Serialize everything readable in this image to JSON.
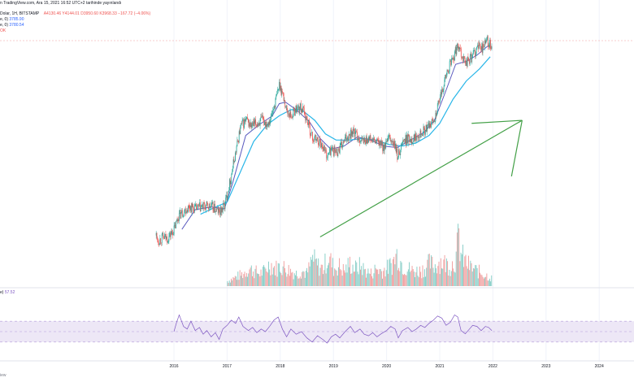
{
  "header": {
    "published": "n TradingView.com, Ara 15, 2021 16:52 UTC+2 tarihinde yayınlandı",
    "symbol": "Dolar, 1H, BITSTAMP",
    "ohlc": [
      "A4130.46",
      "Y4144.01",
      "D3950.60",
      "K3968.33",
      "−167.72 (−4.06%)"
    ],
    "ma1": "e, 0)",
    "ma1_value": "3785.90",
    "ma2": "e, 0)",
    "ma2_value": "3780.54",
    "vol": "OK",
    "rsi": "e)",
    "rsi_value": "57.52"
  },
  "footer": {
    "text": "iew"
  },
  "colors": {
    "up": "#26a69a",
    "down": "#ef5350",
    "ma_fast": "#5b5bbf",
    "ma_slow": "#29b6e8",
    "arrow": "#43a047",
    "rsi": "#7e57c2",
    "rsi_band": "#ede7f6"
  },
  "chart_data": {
    "type": "line",
    "x_ticks": [
      "2016",
      "2017",
      "2018",
      "2019",
      "2020",
      "2021",
      "2022",
      "2023",
      "2024"
    ],
    "price_path": [
      [
        2015.66,
        0.6
      ],
      [
        2015.7,
        0.43
      ],
      [
        2015.78,
        0.52
      ],
      [
        2015.88,
        0.51
      ],
      [
        2016.0,
        0.8
      ],
      [
        2016.08,
        1.25
      ],
      [
        2016.18,
        1.4
      ],
      [
        2016.28,
        1.55
      ],
      [
        2016.4,
        1.48
      ],
      [
        2016.55,
        1.55
      ],
      [
        2016.7,
        1.55
      ],
      [
        2016.85,
        1.35
      ],
      [
        2016.95,
        1.6
      ],
      [
        2017.05,
        2.4
      ],
      [
        2017.15,
        3.3
      ],
      [
        2017.25,
        4.2
      ],
      [
        2017.35,
        4.4
      ],
      [
        2017.45,
        4.2
      ],
      [
        2017.55,
        4.3
      ],
      [
        2017.65,
        4.4
      ],
      [
        2017.75,
        4.3
      ],
      [
        2017.83,
        4.55
      ],
      [
        2017.9,
        5.0
      ],
      [
        2017.98,
        5.6
      ],
      [
        2018.05,
        5.2
      ],
      [
        2018.12,
        4.7
      ],
      [
        2018.2,
        4.55
      ],
      [
        2018.3,
        4.8
      ],
      [
        2018.4,
        4.8
      ],
      [
        2018.5,
        4.4
      ],
      [
        2018.6,
        3.8
      ],
      [
        2018.7,
        3.75
      ],
      [
        2018.8,
        3.55
      ],
      [
        2018.88,
        3.2
      ],
      [
        2018.95,
        3.45
      ],
      [
        2019.05,
        3.35
      ],
      [
        2019.15,
        3.55
      ],
      [
        2019.25,
        3.85
      ],
      [
        2019.35,
        4.05
      ],
      [
        2019.45,
        3.85
      ],
      [
        2019.55,
        3.7
      ],
      [
        2019.65,
        3.8
      ],
      [
        2019.75,
        3.7
      ],
      [
        2019.85,
        3.65
      ],
      [
        2019.95,
        3.5
      ],
      [
        2020.05,
        3.8
      ],
      [
        2020.15,
        3.55
      ],
      [
        2020.2,
        3.2
      ],
      [
        2020.3,
        3.7
      ],
      [
        2020.4,
        3.8
      ],
      [
        2020.5,
        3.8
      ],
      [
        2020.6,
        4.0
      ],
      [
        2020.7,
        4.05
      ],
      [
        2020.8,
        4.2
      ],
      [
        2020.9,
        4.5
      ],
      [
        2021.0,
        5.1
      ],
      [
        2021.08,
        5.7
      ],
      [
        2021.18,
        6.2
      ],
      [
        2021.28,
        6.6
      ],
      [
        2021.35,
        6.95
      ],
      [
        2021.4,
        6.6
      ],
      [
        2021.48,
        6.3
      ],
      [
        2021.55,
        6.4
      ],
      [
        2021.62,
        6.55
      ],
      [
        2021.7,
        6.8
      ],
      [
        2021.8,
        6.8
      ],
      [
        2021.88,
        7.05
      ],
      [
        2021.93,
        6.9
      ],
      [
        2021.98,
        6.75
      ]
    ],
    "ma_fast": [
      [
        2016.15,
        0.8
      ],
      [
        2016.4,
        1.45
      ],
      [
        2016.7,
        1.54
      ],
      [
        2016.95,
        1.48
      ],
      [
        2017.1,
        2.3
      ],
      [
        2017.35,
        3.9
      ],
      [
        2017.6,
        4.25
      ],
      [
        2017.85,
        4.55
      ],
      [
        2017.98,
        4.95
      ],
      [
        2018.1,
        5.0
      ],
      [
        2018.3,
        4.75
      ],
      [
        2018.55,
        4.35
      ],
      [
        2018.75,
        3.8
      ],
      [
        2018.95,
        3.45
      ],
      [
        2019.2,
        3.55
      ],
      [
        2019.45,
        3.85
      ],
      [
        2019.7,
        3.75
      ],
      [
        2019.95,
        3.55
      ],
      [
        2020.2,
        3.5
      ],
      [
        2020.45,
        3.75
      ],
      [
        2020.7,
        4.0
      ],
      [
        2020.9,
        4.4
      ],
      [
        2021.1,
        5.3
      ],
      [
        2021.3,
        6.25
      ],
      [
        2021.5,
        6.35
      ],
      [
        2021.7,
        6.55
      ],
      [
        2021.9,
        6.85
      ]
    ],
    "ma_slow": [
      [
        2016.5,
        1.3
      ],
      [
        2016.8,
        1.55
      ],
      [
        2017.0,
        1.7
      ],
      [
        2017.25,
        2.7
      ],
      [
        2017.5,
        3.7
      ],
      [
        2017.75,
        4.25
      ],
      [
        2017.98,
        4.55
      ],
      [
        2018.2,
        4.75
      ],
      [
        2018.4,
        4.75
      ],
      [
        2018.65,
        4.4
      ],
      [
        2018.85,
        3.95
      ],
      [
        2019.05,
        3.75
      ],
      [
        2019.3,
        3.75
      ],
      [
        2019.55,
        3.8
      ],
      [
        2019.8,
        3.75
      ],
      [
        2020.05,
        3.6
      ],
      [
        2020.3,
        3.55
      ],
      [
        2020.55,
        3.65
      ],
      [
        2020.8,
        3.9
      ],
      [
        2021.0,
        4.3
      ],
      [
        2021.25,
        5.1
      ],
      [
        2021.5,
        5.7
      ],
      [
        2021.75,
        6.1
      ],
      [
        2021.95,
        6.5
      ]
    ],
    "arrow": {
      "from": [
        2018.75,
        0.55
      ],
      "to": [
        2022.55,
        4.4
      ],
      "extension_to": [
        2022.35,
        2.55
      ],
      "extension_from": [
        2021.6,
        4.3
      ]
    },
    "volume": [
      [
        2017.0,
        0.1
      ],
      [
        2017.1,
        0.15
      ],
      [
        2017.2,
        0.2
      ],
      [
        2017.3,
        0.25
      ],
      [
        2017.4,
        0.35
      ],
      [
        2017.5,
        0.3
      ],
      [
        2017.6,
        0.25
      ],
      [
        2017.7,
        0.3
      ],
      [
        2017.8,
        0.45
      ],
      [
        2017.9,
        0.35
      ],
      [
        2018.0,
        0.4
      ],
      [
        2018.1,
        0.35
      ],
      [
        2018.2,
        0.3
      ],
      [
        2018.3,
        0.25
      ],
      [
        2018.4,
        0.3
      ],
      [
        2018.5,
        0.25
      ],
      [
        2018.6,
        0.55
      ],
      [
        2018.7,
        0.4
      ],
      [
        2018.8,
        0.35
      ],
      [
        2018.9,
        0.6
      ],
      [
        2019.0,
        0.35
      ],
      [
        2019.1,
        0.4
      ],
      [
        2019.2,
        0.3
      ],
      [
        2019.3,
        0.45
      ],
      [
        2019.4,
        0.35
      ],
      [
        2019.5,
        0.4
      ],
      [
        2019.6,
        0.3
      ],
      [
        2019.7,
        0.25
      ],
      [
        2019.8,
        0.35
      ],
      [
        2019.9,
        0.3
      ],
      [
        2020.0,
        0.35
      ],
      [
        2020.1,
        0.45
      ],
      [
        2020.2,
        0.65
      ],
      [
        2020.3,
        0.4
      ],
      [
        2020.4,
        0.35
      ],
      [
        2020.5,
        0.3
      ],
      [
        2020.6,
        0.3
      ],
      [
        2020.7,
        0.35
      ],
      [
        2020.8,
        0.45
      ],
      [
        2020.9,
        0.4
      ],
      [
        2021.0,
        0.5
      ],
      [
        2021.1,
        0.45
      ],
      [
        2021.2,
        0.4
      ],
      [
        2021.3,
        0.55
      ],
      [
        2021.35,
        1.0
      ],
      [
        2021.4,
        0.6
      ],
      [
        2021.5,
        0.45
      ],
      [
        2021.6,
        0.35
      ],
      [
        2021.7,
        0.3
      ],
      [
        2021.8,
        0.25
      ],
      [
        2021.9,
        0.2
      ],
      [
        2021.98,
        0.15
      ]
    ],
    "rsi": [
      [
        2016.0,
        50
      ],
      [
        2016.05,
        68
      ],
      [
        2016.1,
        82
      ],
      [
        2016.18,
        60
      ],
      [
        2016.25,
        55
      ],
      [
        2016.32,
        70
      ],
      [
        2016.4,
        52
      ],
      [
        2016.48,
        58
      ],
      [
        2016.55,
        45
      ],
      [
        2016.62,
        52
      ],
      [
        2016.7,
        40
      ],
      [
        2016.78,
        48
      ],
      [
        2016.85,
        35
      ],
      [
        2016.92,
        55
      ],
      [
        2017.0,
        62
      ],
      [
        2017.08,
        72
      ],
      [
        2017.16,
        66
      ],
      [
        2017.22,
        78
      ],
      [
        2017.3,
        60
      ],
      [
        2017.4,
        52
      ],
      [
        2017.48,
        58
      ],
      [
        2017.56,
        48
      ],
      [
        2017.64,
        55
      ],
      [
        2017.72,
        50
      ],
      [
        2017.8,
        60
      ],
      [
        2017.88,
        72
      ],
      [
        2017.96,
        78
      ],
      [
        2018.04,
        55
      ],
      [
        2018.12,
        40
      ],
      [
        2018.2,
        55
      ],
      [
        2018.3,
        45
      ],
      [
        2018.4,
        50
      ],
      [
        2018.5,
        38
      ],
      [
        2018.6,
        30
      ],
      [
        2018.7,
        42
      ],
      [
        2018.8,
        35
      ],
      [
        2018.88,
        28
      ],
      [
        2018.96,
        40
      ],
      [
        2019.04,
        45
      ],
      [
        2019.12,
        38
      ],
      [
        2019.22,
        50
      ],
      [
        2019.32,
        60
      ],
      [
        2019.4,
        48
      ],
      [
        2019.5,
        55
      ],
      [
        2019.58,
        45
      ],
      [
        2019.66,
        42
      ],
      [
        2019.74,
        48
      ],
      [
        2019.82,
        40
      ],
      [
        2019.9,
        46
      ],
      [
        2020.0,
        52
      ],
      [
        2020.08,
        60
      ],
      [
        2020.16,
        55
      ],
      [
        2020.22,
        38
      ],
      [
        2020.3,
        52
      ],
      [
        2020.4,
        58
      ],
      [
        2020.48,
        50
      ],
      [
        2020.56,
        55
      ],
      [
        2020.64,
        62
      ],
      [
        2020.72,
        58
      ],
      [
        2020.8,
        66
      ],
      [
        2020.88,
        72
      ],
      [
        2020.96,
        80
      ],
      [
        2021.04,
        76
      ],
      [
        2021.12,
        62
      ],
      [
        2021.2,
        68
      ],
      [
        2021.28,
        82
      ],
      [
        2021.34,
        78
      ],
      [
        2021.4,
        52
      ],
      [
        2021.48,
        46
      ],
      [
        2021.56,
        55
      ],
      [
        2021.62,
        62
      ],
      [
        2021.7,
        60
      ],
      [
        2021.78,
        52
      ],
      [
        2021.86,
        60
      ],
      [
        2021.92,
        58
      ],
      [
        2021.98,
        52
      ]
    ],
    "rsi_levels": [
      70,
      50,
      30
    ]
  }
}
